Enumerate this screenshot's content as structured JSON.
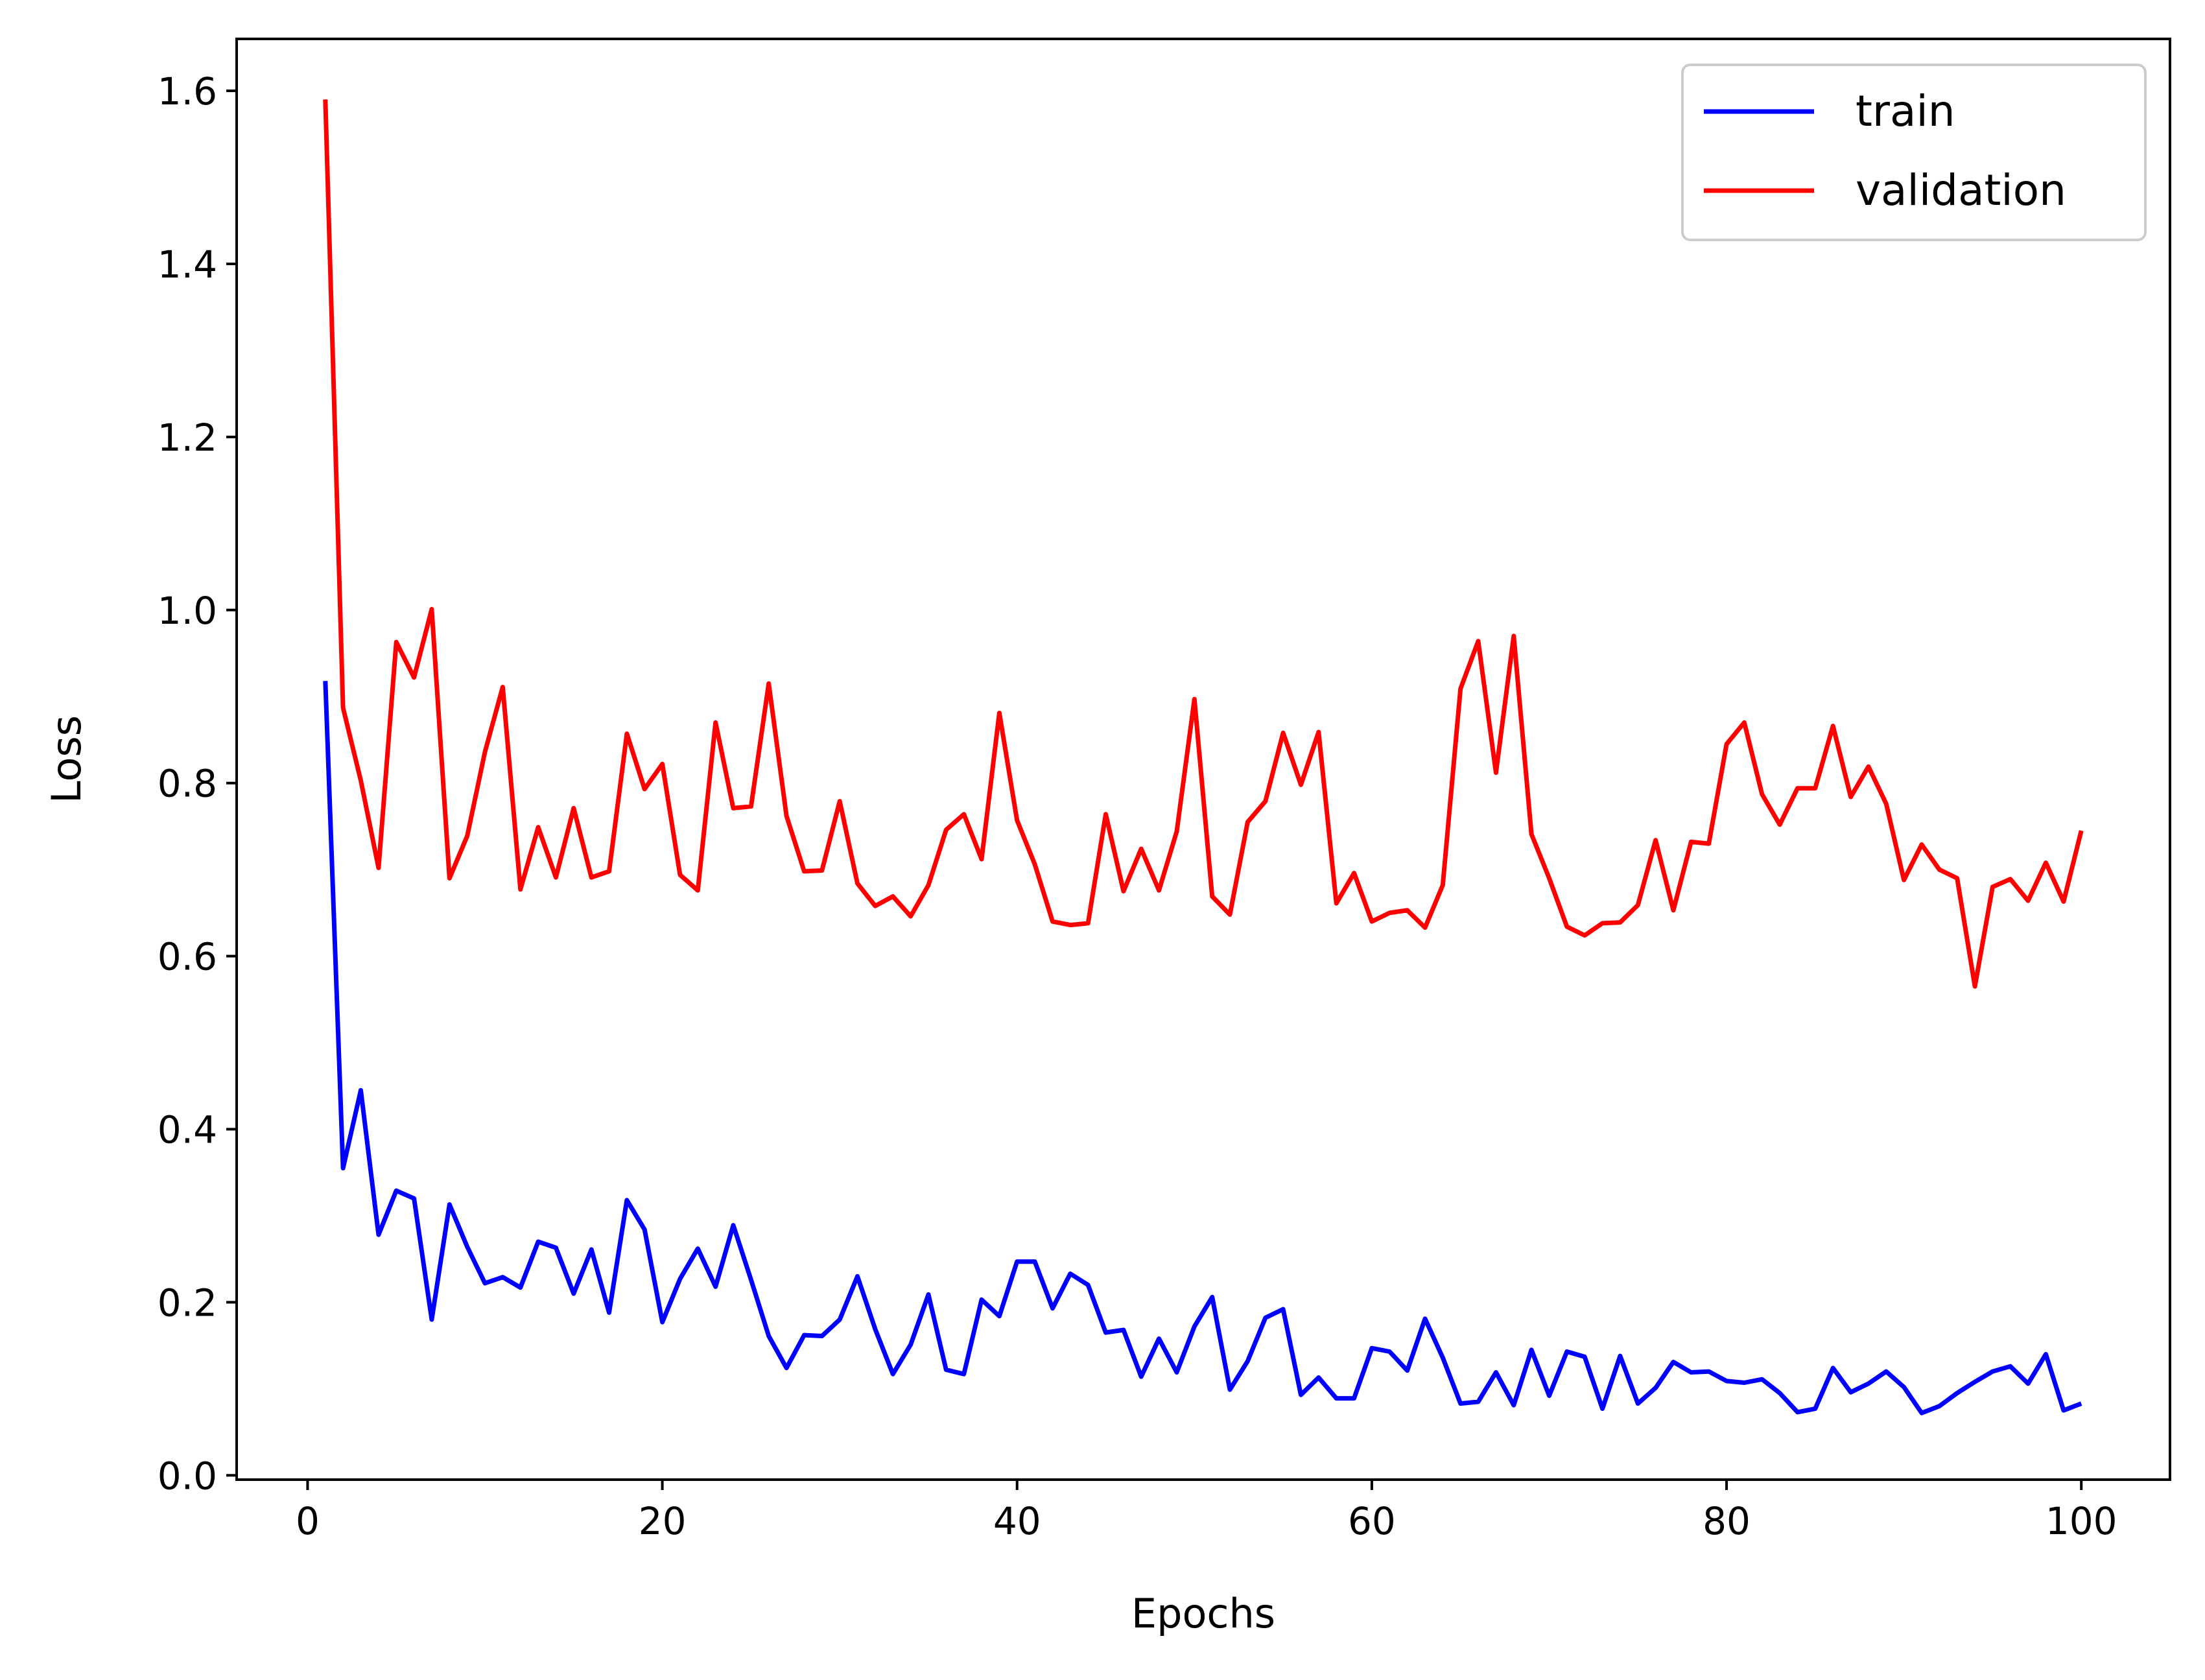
{
  "chart_data": {
    "type": "line",
    "title": "",
    "xlabel": "Epochs",
    "ylabel": "Loss",
    "xlim": [
      -4,
      105
    ],
    "ylim": [
      -0.005,
      1.66
    ],
    "xticks": [
      {
        "value": 0,
        "label": "0"
      },
      {
        "value": 20,
        "label": "20"
      },
      {
        "value": 40,
        "label": "40"
      },
      {
        "value": 60,
        "label": "60"
      },
      {
        "value": 80,
        "label": "80"
      },
      {
        "value": 100,
        "label": "100"
      }
    ],
    "yticks": [
      {
        "value": 0.0,
        "label": "0.0"
      },
      {
        "value": 0.2,
        "label": "0.2"
      },
      {
        "value": 0.4,
        "label": "0.4"
      },
      {
        "value": 0.6,
        "label": "0.6"
      },
      {
        "value": 0.8,
        "label": "0.8"
      },
      {
        "value": 1.0,
        "label": "1.0"
      },
      {
        "value": 1.2,
        "label": "1.2"
      },
      {
        "value": 1.4,
        "label": "1.4"
      },
      {
        "value": 1.6,
        "label": "1.6"
      }
    ],
    "grid": false,
    "legend_position": "top-right",
    "series": [
      {
        "name": "train",
        "color": "#0000ff",
        "x": [
          1,
          2,
          3,
          4,
          5,
          6,
          7,
          8,
          9,
          10,
          11,
          12,
          13,
          14,
          15,
          16,
          17,
          18,
          19,
          20,
          21,
          22,
          23,
          24,
          25,
          26,
          27,
          28,
          29,
          30,
          31,
          32,
          33,
          34,
          35,
          36,
          37,
          38,
          39,
          40,
          41,
          42,
          43,
          44,
          45,
          46,
          47,
          48,
          49,
          50,
          51,
          52,
          53,
          54,
          55,
          56,
          57,
          58,
          59,
          60,
          61,
          62,
          63,
          64,
          65,
          66,
          67,
          68,
          69,
          70,
          71,
          72,
          73,
          74,
          75,
          76,
          77,
          78,
          79,
          80,
          81,
          82,
          83,
          84,
          85,
          86,
          87,
          88,
          89,
          90,
          91,
          92,
          93,
          94,
          95,
          96,
          97,
          98,
          99,
          100
        ],
        "y": [
          0.918,
          0.355,
          0.445,
          0.278,
          0.329,
          0.32,
          0.18,
          0.313,
          0.264,
          0.222,
          0.229,
          0.217,
          0.27,
          0.263,
          0.21,
          0.261,
          0.188,
          0.318,
          0.284,
          0.177,
          0.227,
          0.262,
          0.218,
          0.289,
          0.226,
          0.161,
          0.124,
          0.162,
          0.161,
          0.18,
          0.23,
          0.169,
          0.117,
          0.151,
          0.209,
          0.122,
          0.117,
          0.203,
          0.184,
          0.247,
          0.247,
          0.193,
          0.233,
          0.22,
          0.165,
          0.168,
          0.114,
          0.158,
          0.119,
          0.172,
          0.206,
          0.099,
          0.132,
          0.182,
          0.192,
          0.093,
          0.113,
          0.089,
          0.089,
          0.147,
          0.143,
          0.121,
          0.181,
          0.136,
          0.083,
          0.085,
          0.119,
          0.081,
          0.145,
          0.092,
          0.143,
          0.137,
          0.077,
          0.138,
          0.083,
          0.101,
          0.131,
          0.119,
          0.12,
          0.109,
          0.107,
          0.111,
          0.095,
          0.073,
          0.077,
          0.124,
          0.096,
          0.106,
          0.12,
          0.102,
          0.072,
          0.08,
          0.095,
          0.108,
          0.12,
          0.126,
          0.106,
          0.14,
          0.075,
          0.083
        ]
      },
      {
        "name": "validation",
        "color": "#ff0000",
        "x": [
          1,
          2,
          3,
          4,
          5,
          6,
          7,
          8,
          9,
          10,
          11,
          12,
          13,
          14,
          15,
          16,
          17,
          18,
          19,
          20,
          21,
          22,
          23,
          24,
          25,
          26,
          27,
          28,
          29,
          30,
          31,
          32,
          33,
          34,
          35,
          36,
          37,
          38,
          39,
          40,
          41,
          42,
          43,
          44,
          45,
          46,
          47,
          48,
          49,
          50,
          51,
          52,
          53,
          54,
          55,
          56,
          57,
          58,
          59,
          60,
          61,
          62,
          63,
          64,
          65,
          66,
          67,
          68,
          69,
          70,
          71,
          72,
          73,
          74,
          75,
          76,
          77,
          78,
          79,
          80,
          81,
          82,
          83,
          84,
          85,
          86,
          87,
          88,
          89,
          90,
          91,
          92,
          93,
          94,
          95,
          96,
          97,
          98,
          99,
          100
        ],
        "y": [
          1.59,
          0.887,
          0.803,
          0.702,
          0.963,
          0.922,
          1.001,
          0.69,
          0.739,
          0.836,
          0.911,
          0.677,
          0.749,
          0.691,
          0.771,
          0.691,
          0.698,
          0.857,
          0.793,
          0.822,
          0.694,
          0.676,
          0.87,
          0.771,
          0.773,
          0.915,
          0.762,
          0.698,
          0.699,
          0.779,
          0.684,
          0.658,
          0.669,
          0.646,
          0.682,
          0.746,
          0.764,
          0.712,
          0.881,
          0.757,
          0.706,
          0.64,
          0.636,
          0.638,
          0.764,
          0.675,
          0.724,
          0.676,
          0.744,
          0.897,
          0.669,
          0.648,
          0.755,
          0.779,
          0.858,
          0.798,
          0.859,
          0.661,
          0.696,
          0.64,
          0.65,
          0.653,
          0.633,
          0.682,
          0.909,
          0.964,
          0.812,
          0.97,
          0.741,
          0.69,
          0.634,
          0.624,
          0.638,
          0.639,
          0.659,
          0.734,
          0.653,
          0.732,
          0.73,
          0.845,
          0.87,
          0.787,
          0.752,
          0.794,
          0.794,
          0.866,
          0.784,
          0.819,
          0.776,
          0.688,
          0.729,
          0.7,
          0.69,
          0.565,
          0.68,
          0.689,
          0.664,
          0.708,
          0.663,
          0.745
        ]
      }
    ]
  }
}
